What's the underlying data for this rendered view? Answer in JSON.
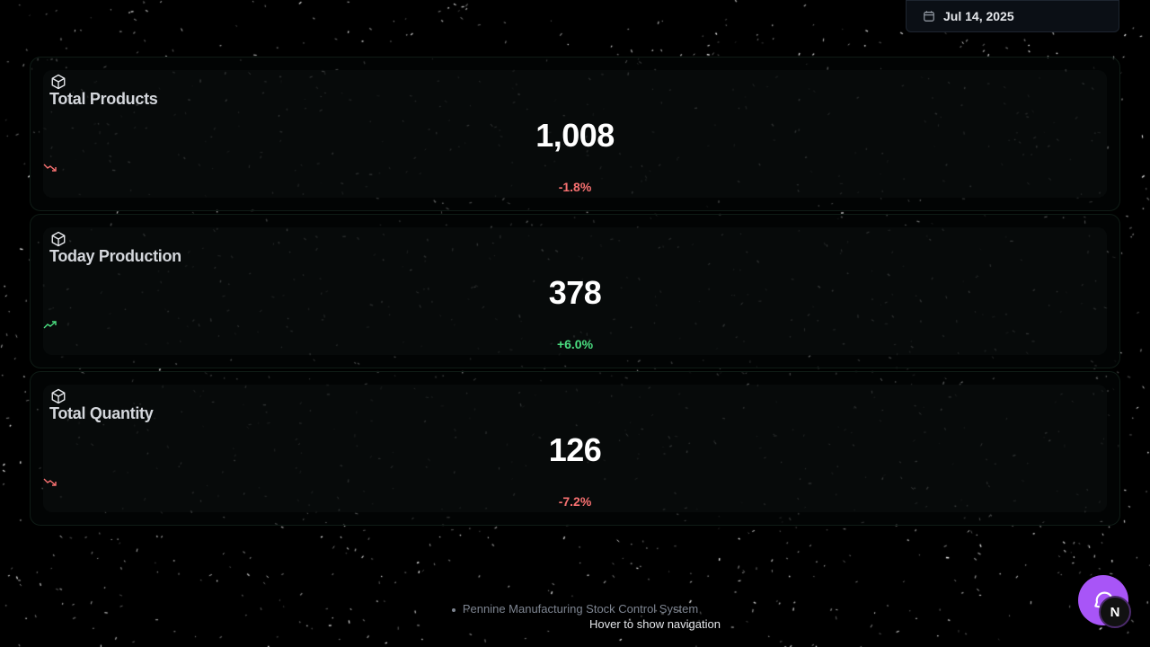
{
  "header": {
    "date": "Jul 14, 2025"
  },
  "cards": [
    {
      "title": "Total Products",
      "value": "1,008",
      "change": "-1.8%",
      "trend": "down"
    },
    {
      "title": "Today Production",
      "value": "378",
      "change": "+6.0%",
      "trend": "up"
    },
    {
      "title": "Total Quantity",
      "value": "126",
      "change": "-7.2%",
      "trend": "down"
    }
  ],
  "footer": {
    "text": "Pennine Manufacturing Stock Control System",
    "hint": "Hover to show navigation"
  },
  "avatar": {
    "initial": "N"
  },
  "colors": {
    "negative": "#f87171",
    "positive": "#4ade80",
    "chat_accent": "#a855f7"
  }
}
